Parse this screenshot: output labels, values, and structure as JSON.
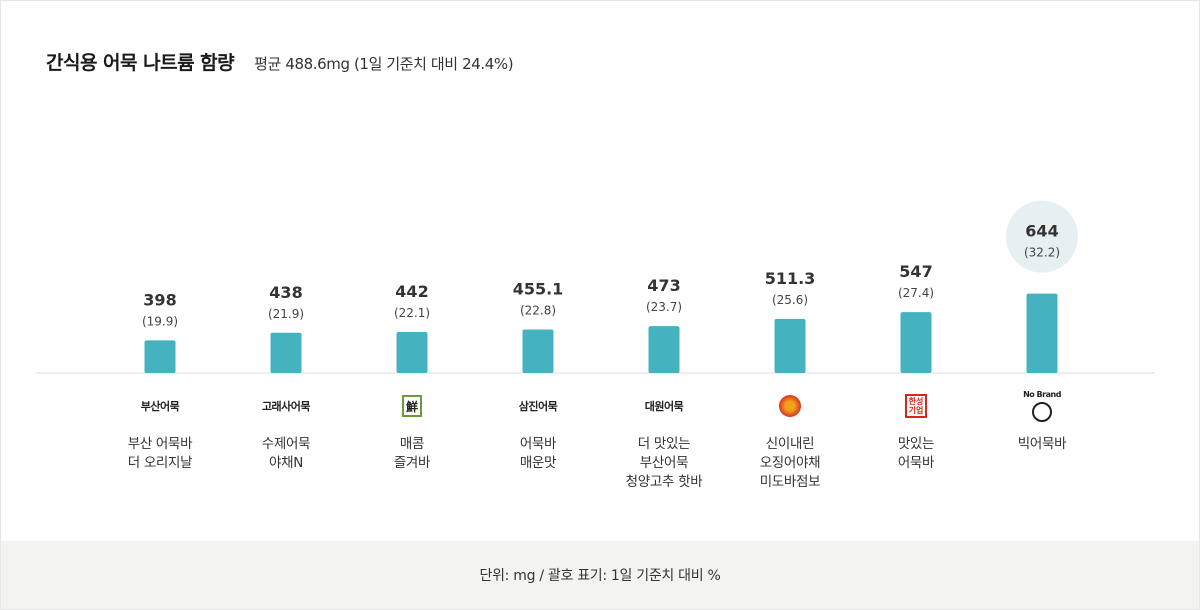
{
  "chart_data": {
    "type": "bar",
    "title": "간식용 어묵 나트륨 함량",
    "subtitle": "평균 488.6mg (1일 기준치 대비 24.4%)",
    "footnote": "단위: mg / 괄호 표기: 1일 기준치 대비 %",
    "categories": [
      "부산 어묵바\n더 오리지날",
      "수제어묵\n야채N",
      "매콤\n즐겨바",
      "어묵바\n매운맛",
      "더 맛있는\n부산어묵\n청양고추 핫바",
      "신이내린\n오징어야채\n미도바점보",
      "맛있는\n어묵바",
      "빅어묵바"
    ],
    "values": [
      398,
      438,
      442,
      455.1,
      473,
      511.3,
      547,
      644
    ],
    "value_labels": [
      "398",
      "438",
      "442",
      "455.1",
      "473",
      "511.3",
      "547",
      "644"
    ],
    "percent_labels": [
      "(19.9)",
      "(21.9)",
      "(22.1)",
      "(22.8)",
      "(23.7)",
      "(25.6)",
      "(27.4)",
      "(32.2)"
    ],
    "brands": [
      {
        "logo": "부산어묵",
        "icon": "busan-eomuk-logo"
      },
      {
        "logo": "고래사어묵",
        "icon": "goraesa-logo"
      },
      {
        "logo": "대림선",
        "icon": "daerimseon-logo"
      },
      {
        "logo": "삼진어묵",
        "icon": "samjin-logo"
      },
      {
        "logo": "대원어묵",
        "icon": "daewon-logo"
      },
      {
        "logo": "",
        "icon": "seal-logo"
      },
      {
        "logo": "한성기업",
        "icon": "hansung-logo"
      },
      {
        "logo": "No Brand",
        "icon": "nobrand-logo"
      }
    ],
    "highlight_index": 7,
    "ylim": [
      0,
      700
    ],
    "grid": false,
    "colors": {
      "bar": "#45b3bf",
      "highlight_circle": "#e6eff1",
      "baseline": "#dddddd",
      "logo_red": "#d7261e",
      "logo_green": "#6c9a3a"
    }
  }
}
